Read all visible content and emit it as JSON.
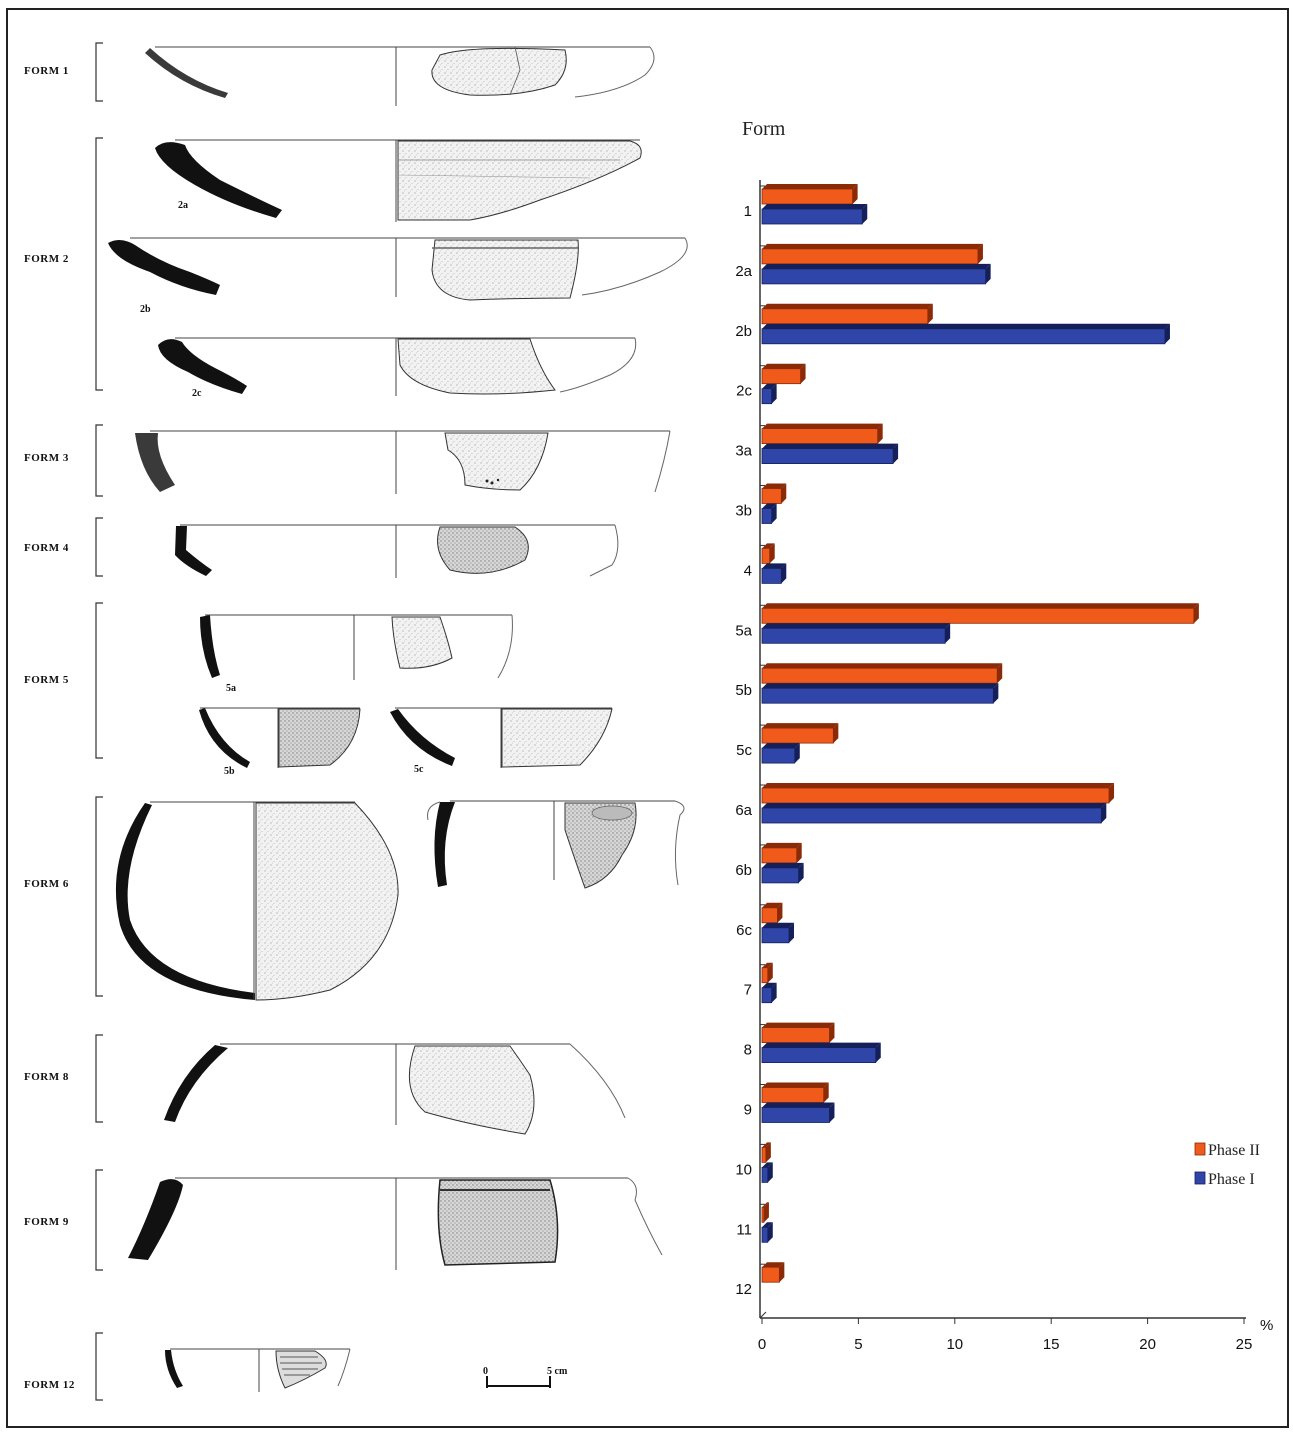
{
  "forms": [
    {
      "label": "FORM 1",
      "sub": []
    },
    {
      "label": "FORM 2",
      "sub": [
        "2a",
        "2b",
        "2c"
      ]
    },
    {
      "label": "FORM 3",
      "sub": []
    },
    {
      "label": "FORM 4",
      "sub": []
    },
    {
      "label": "FORM 5",
      "sub": [
        "5a",
        "5b",
        "5c"
      ]
    },
    {
      "label": "FORM 6",
      "sub": []
    },
    {
      "label": "FORM 8",
      "sub": []
    },
    {
      "label": "FORM 9",
      "sub": []
    },
    {
      "label": "FORM 12",
      "sub": []
    }
  ],
  "scale_bar": {
    "start": "0",
    "end": "5 cm"
  },
  "colors": {
    "phase2": "#f05a1a",
    "phase1": "#2f45a8",
    "phase2_dark": "#8a2a06",
    "phase1_dark": "#15205a"
  },
  "chart_data": {
    "type": "bar",
    "orientation": "horizontal",
    "title": "Form",
    "xlabel": "%",
    "ylabel": "",
    "xlim": [
      0,
      25
    ],
    "xticks": [
      "0",
      "5",
      "10",
      "15",
      "20",
      "25"
    ],
    "categories": [
      "1",
      "2a",
      "2b",
      "2c",
      "3a",
      "3b",
      "4",
      "5a",
      "5b",
      "5c",
      "6a",
      "6b",
      "6c",
      "7",
      "8",
      "9",
      "10",
      "11",
      "12"
    ],
    "series": [
      {
        "name": "Phase II",
        "values": [
          4.7,
          11.2,
          8.6,
          2.0,
          6.0,
          1.0,
          0.4,
          22.4,
          12.2,
          3.7,
          18.0,
          1.8,
          0.8,
          0.3,
          3.5,
          3.2,
          0.2,
          0.1,
          0.9
        ]
      },
      {
        "name": "Phase I",
        "values": [
          5.2,
          11.6,
          20.9,
          0.5,
          6.8,
          0.5,
          1.0,
          9.5,
          12.0,
          1.7,
          17.6,
          1.9,
          1.4,
          0.5,
          5.9,
          3.5,
          0.3,
          0.3,
          0.0
        ]
      }
    ],
    "legend": {
      "position": "right",
      "entries": [
        "Phase II",
        "Phase I"
      ]
    },
    "grid": false
  }
}
